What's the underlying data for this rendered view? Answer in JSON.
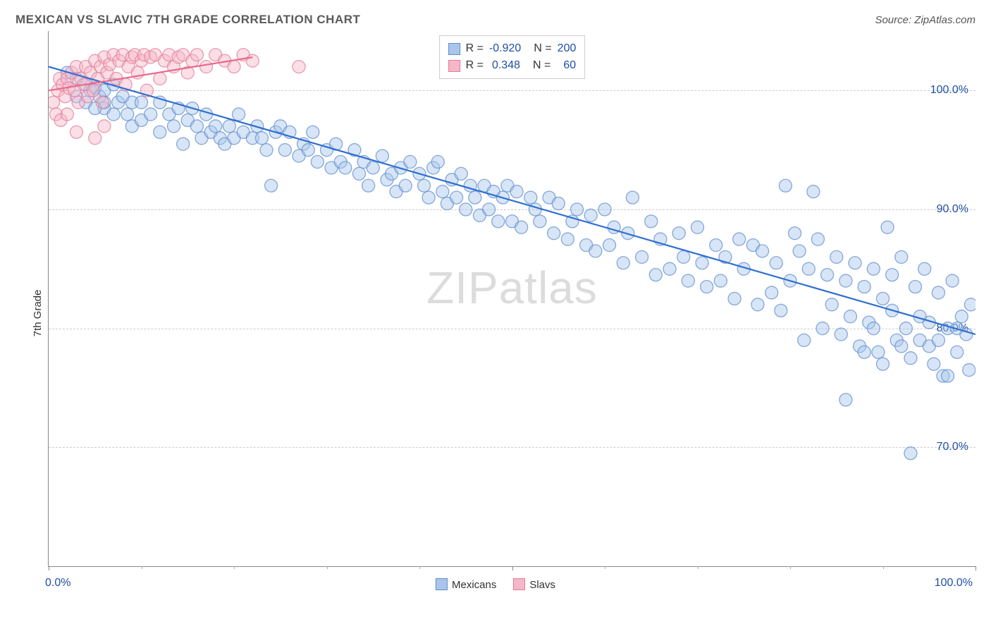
{
  "title": "MEXICAN VS SLAVIC 7TH GRADE CORRELATION CHART",
  "source": "Source: ZipAtlas.com",
  "ylabel": "7th Grade",
  "watermark_a": "ZIP",
  "watermark_b": "atlas",
  "chart": {
    "type": "scatter",
    "background_color": "#ffffff",
    "grid_color": "#cccccc",
    "axis_color": "#888888",
    "value_label_color": "#1e4fa3",
    "xlim": [
      0,
      100
    ],
    "ylim": [
      60,
      105
    ],
    "xtick_positions": [
      0,
      50,
      100
    ],
    "xtick_minor_positions": [
      10,
      20,
      30,
      40,
      60,
      70,
      80,
      90
    ],
    "xtick_labels_shown": {
      "0": "0.0%",
      "100": "100.0%"
    },
    "yticks": [
      70,
      80,
      90,
      100
    ],
    "ytick_labels": [
      "70.0%",
      "80.0%",
      "90.0%",
      "100.0%"
    ],
    "marker_radius": 9,
    "marker_opacity": 0.45,
    "line_width": 2.2,
    "series": [
      {
        "name": "Mexicans",
        "fill_color": "#a9c6ea",
        "stroke_color": "#5f8dcf",
        "line_color": "#2f6fd0",
        "trend": {
          "x1": 0,
          "y1": 102.0,
          "x2": 100,
          "y2": 79.5
        },
        "R": "-0.920",
        "N": "200",
        "points": [
          [
            2,
            101.5
          ],
          [
            3,
            101
          ],
          [
            4,
            100.5
          ],
          [
            4.5,
            100
          ],
          [
            5,
            100.2
          ],
          [
            5.5,
            99.5
          ],
          [
            6,
            100
          ],
          [
            6,
            98.5
          ],
          [
            7,
            100.5
          ],
          [
            7.5,
            99
          ],
          [
            3,
            99.5
          ],
          [
            4,
            99
          ],
          [
            5,
            98.5
          ],
          [
            6,
            99
          ],
          [
            7,
            98
          ],
          [
            8,
            99.5
          ],
          [
            8.5,
            98
          ],
          [
            9,
            99
          ],
          [
            9,
            97
          ],
          [
            10,
            99
          ],
          [
            10,
            97.5
          ],
          [
            11,
            98
          ],
          [
            12,
            99
          ],
          [
            12,
            96.5
          ],
          [
            13,
            98
          ],
          [
            13.5,
            97
          ],
          [
            14,
            98.5
          ],
          [
            14.5,
            95.5
          ],
          [
            15,
            97.5
          ],
          [
            15.5,
            98.5
          ],
          [
            16,
            97
          ],
          [
            16.5,
            96
          ],
          [
            17,
            98
          ],
          [
            17.5,
            96.5
          ],
          [
            18,
            97
          ],
          [
            18.5,
            96
          ],
          [
            19,
            95.5
          ],
          [
            19.5,
            97
          ],
          [
            20,
            96
          ],
          [
            20.5,
            98
          ],
          [
            21,
            96.5
          ],
          [
            22,
            96
          ],
          [
            22.5,
            97
          ],
          [
            23,
            96
          ],
          [
            23.5,
            95
          ],
          [
            24,
            92
          ],
          [
            24.5,
            96.5
          ],
          [
            25,
            97
          ],
          [
            25.5,
            95
          ],
          [
            26,
            96.5
          ],
          [
            27,
            94.5
          ],
          [
            27.5,
            95.5
          ],
          [
            28,
            95
          ],
          [
            28.5,
            96.5
          ],
          [
            29,
            94
          ],
          [
            30,
            95
          ],
          [
            30.5,
            93.5
          ],
          [
            31,
            95.5
          ],
          [
            31.5,
            94
          ],
          [
            32,
            93.5
          ],
          [
            33,
            95
          ],
          [
            33.5,
            93
          ],
          [
            34,
            94
          ],
          [
            34.5,
            92
          ],
          [
            35,
            93.5
          ],
          [
            36,
            94.5
          ],
          [
            36.5,
            92.5
          ],
          [
            37,
            93
          ],
          [
            37.5,
            91.5
          ],
          [
            38,
            93.5
          ],
          [
            38.5,
            92
          ],
          [
            39,
            94
          ],
          [
            40,
            93
          ],
          [
            40.5,
            92
          ],
          [
            41,
            91
          ],
          [
            41.5,
            93.5
          ],
          [
            42,
            94
          ],
          [
            42.5,
            91.5
          ],
          [
            43,
            90.5
          ],
          [
            43.5,
            92.5
          ],
          [
            44,
            91
          ],
          [
            44.5,
            93
          ],
          [
            45,
            90
          ],
          [
            45.5,
            92
          ],
          [
            46,
            91
          ],
          [
            46.5,
            89.5
          ],
          [
            47,
            92
          ],
          [
            47.5,
            90
          ],
          [
            48,
            91.5
          ],
          [
            48.5,
            89
          ],
          [
            49,
            91
          ],
          [
            49.5,
            92
          ],
          [
            50,
            89
          ],
          [
            50.5,
            91.5
          ],
          [
            51,
            88.5
          ],
          [
            52,
            91
          ],
          [
            52.5,
            90
          ],
          [
            53,
            89
          ],
          [
            54,
            91
          ],
          [
            54.5,
            88
          ],
          [
            55,
            90.5
          ],
          [
            56,
            87.5
          ],
          [
            56.5,
            89
          ],
          [
            57,
            90
          ],
          [
            58,
            87
          ],
          [
            58.5,
            89.5
          ],
          [
            59,
            86.5
          ],
          [
            60,
            90
          ],
          [
            60.5,
            87
          ],
          [
            61,
            88.5
          ],
          [
            62,
            85.5
          ],
          [
            62.5,
            88
          ],
          [
            63,
            91
          ],
          [
            64,
            86
          ],
          [
            65,
            89
          ],
          [
            65.5,
            84.5
          ],
          [
            66,
            87.5
          ],
          [
            67,
            85
          ],
          [
            68,
            88
          ],
          [
            68.5,
            86
          ],
          [
            69,
            84
          ],
          [
            70,
            88.5
          ],
          [
            70.5,
            85.5
          ],
          [
            71,
            83.5
          ],
          [
            72,
            87
          ],
          [
            72.5,
            84
          ],
          [
            73,
            86
          ],
          [
            74,
            82.5
          ],
          [
            74.5,
            87.5
          ],
          [
            75,
            85
          ],
          [
            76,
            87
          ],
          [
            76.5,
            82
          ],
          [
            77,
            86.5
          ],
          [
            78,
            83
          ],
          [
            78.5,
            85.5
          ],
          [
            79,
            81.5
          ],
          [
            79.5,
            92
          ],
          [
            80,
            84
          ],
          [
            80.5,
            88
          ],
          [
            81,
            86.5
          ],
          [
            81.5,
            79
          ],
          [
            82,
            85
          ],
          [
            82.5,
            91.5
          ],
          [
            83,
            87.5
          ],
          [
            83.5,
            80
          ],
          [
            84,
            84.5
          ],
          [
            84.5,
            82
          ],
          [
            85,
            86
          ],
          [
            85.5,
            79.5
          ],
          [
            86,
            84
          ],
          [
            86.5,
            81
          ],
          [
            87,
            85.5
          ],
          [
            87.5,
            78.5
          ],
          [
            88,
            83.5
          ],
          [
            88.5,
            80.5
          ],
          [
            89,
            85
          ],
          [
            89.5,
            78
          ],
          [
            90,
            82.5
          ],
          [
            90.5,
            88.5
          ],
          [
            91,
            84.5
          ],
          [
            91.5,
            79
          ],
          [
            92,
            86
          ],
          [
            92.5,
            80
          ],
          [
            93,
            77.5
          ],
          [
            93.5,
            83.5
          ],
          [
            94,
            79
          ],
          [
            94.5,
            85
          ],
          [
            95,
            80.5
          ],
          [
            95.5,
            77
          ],
          [
            96,
            83
          ],
          [
            96.5,
            76
          ],
          [
            97,
            80
          ],
          [
            97.5,
            84
          ],
          [
            98,
            78
          ],
          [
            98.5,
            81
          ],
          [
            86,
            74
          ],
          [
            99,
            79.5
          ],
          [
            99.3,
            76.5
          ],
          [
            99.5,
            82
          ],
          [
            93,
            69.5
          ],
          [
            88,
            78
          ],
          [
            89,
            80
          ],
          [
            90,
            77
          ],
          [
            91,
            81.5
          ],
          [
            92,
            78.5
          ],
          [
            94,
            81
          ],
          [
            95,
            78.5
          ],
          [
            96,
            79
          ],
          [
            97,
            76
          ],
          [
            98,
            80
          ]
        ]
      },
      {
        "name": "Slavs",
        "fill_color": "#f4b8c8",
        "stroke_color": "#e77a9a",
        "line_color": "#e86a8f",
        "trend": {
          "x1": 0,
          "y1": 100.0,
          "x2": 22,
          "y2": 102.8
        },
        "R": "0.348",
        "N": "60",
        "points": [
          [
            0.5,
            99
          ],
          [
            1,
            100
          ],
          [
            1.2,
            101
          ],
          [
            1.5,
            100.5
          ],
          [
            1.8,
            99.5
          ],
          [
            2,
            101
          ],
          [
            2.2,
            100.2
          ],
          [
            2.5,
            101.5
          ],
          [
            2.8,
            100
          ],
          [
            3,
            102
          ],
          [
            3.2,
            99
          ],
          [
            3.5,
            101
          ],
          [
            3.8,
            100.5
          ],
          [
            4,
            102
          ],
          [
            4.2,
            99.5
          ],
          [
            4.5,
            101.5
          ],
          [
            4.8,
            100
          ],
          [
            5,
            102.5
          ],
          [
            5.3,
            101
          ],
          [
            5.6,
            102
          ],
          [
            5.8,
            99
          ],
          [
            6,
            102.8
          ],
          [
            6.3,
            101.5
          ],
          [
            6.6,
            102.2
          ],
          [
            7,
            103
          ],
          [
            7.3,
            101
          ],
          [
            7.6,
            102.5
          ],
          [
            8,
            103
          ],
          [
            8.3,
            100.5
          ],
          [
            8.6,
            102
          ],
          [
            9,
            102.8
          ],
          [
            9.3,
            103
          ],
          [
            9.6,
            101.5
          ],
          [
            10,
            102.5
          ],
          [
            10.3,
            103
          ],
          [
            10.6,
            100
          ],
          [
            11,
            102.8
          ],
          [
            11.5,
            103
          ],
          [
            12,
            101
          ],
          [
            12.5,
            102.5
          ],
          [
            13,
            103
          ],
          [
            13.5,
            102
          ],
          [
            14,
            102.8
          ],
          [
            14.5,
            103
          ],
          [
            15,
            101.5
          ],
          [
            15.5,
            102.5
          ],
          [
            16,
            103
          ],
          [
            17,
            102
          ],
          [
            18,
            103
          ],
          [
            19,
            102.5
          ],
          [
            20,
            102
          ],
          [
            21,
            103
          ],
          [
            22,
            102.5
          ],
          [
            0.8,
            98
          ],
          [
            1.3,
            97.5
          ],
          [
            2,
            98
          ],
          [
            3,
            96.5
          ],
          [
            5,
            96
          ],
          [
            6,
            97
          ],
          [
            27,
            102
          ]
        ]
      }
    ],
    "legend": [
      {
        "label": "Mexicans",
        "fill": "#a9c6ea",
        "stroke": "#5f8dcf"
      },
      {
        "label": "Slavs",
        "fill": "#f4b8c8",
        "stroke": "#e77a9a"
      }
    ]
  }
}
